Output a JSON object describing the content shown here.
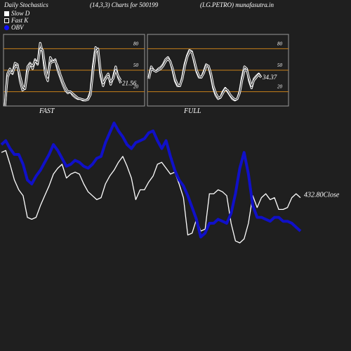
{
  "header": {
    "left": "Daily Stochastics",
    "params": "(14,3,3) Charts for 500199",
    "symbol": "(I.G.PETRO) munafasutra.in"
  },
  "legend": [
    {
      "label": "Slow  D",
      "swatch": "white"
    },
    {
      "label": "Fast K",
      "swatch": "outline"
    },
    {
      "label": "OBV",
      "swatch": "blue"
    }
  ],
  "chart_data": [
    {
      "type": "line",
      "name": "FAST",
      "ylim": [
        0,
        100
      ],
      "levels": [
        20,
        50,
        80
      ],
      "tick_labels": [
        "80",
        "50",
        "20"
      ],
      "last_value_label": "21.56",
      "series": [
        {
          "name": "Fast K",
          "values": [
            0,
            45,
            52,
            45,
            60,
            58,
            35,
            22,
            25,
            55,
            60,
            52,
            65,
            58,
            88,
            75,
            45,
            35,
            68,
            62,
            65,
            50,
            40,
            30,
            22,
            18,
            20,
            15,
            12,
            10,
            10,
            8,
            8,
            10,
            20,
            55,
            82,
            78,
            42,
            28,
            40,
            45,
            30,
            40,
            55,
            40,
            32
          ]
        },
        {
          "name": "Slow D",
          "values": [
            0,
            40,
            48,
            46,
            55,
            56,
            42,
            28,
            24,
            48,
            58,
            56,
            63,
            60,
            80,
            78,
            54,
            40,
            60,
            62,
            63,
            55,
            44,
            34,
            26,
            20,
            20,
            17,
            14,
            11,
            10,
            9,
            8,
            9,
            16,
            48,
            75,
            80,
            48,
            32,
            38,
            42,
            34,
            38,
            50,
            42,
            36
          ]
        }
      ]
    },
    {
      "type": "line",
      "name": "FULL",
      "ylim": [
        0,
        100
      ],
      "levels": [
        20,
        50,
        80
      ],
      "tick_labels": [
        "80",
        "50",
        "20"
      ],
      "last_value_label": "34.37",
      "series": [
        {
          "name": "Fast K",
          "values": [
            40,
            55,
            50,
            48,
            52,
            54,
            58,
            65,
            68,
            62,
            50,
            35,
            28,
            28,
            40,
            58,
            70,
            78,
            76,
            62,
            48,
            40,
            40,
            48,
            58,
            55,
            42,
            25,
            15,
            10,
            12,
            20,
            25,
            20,
            15,
            10,
            8,
            10,
            20,
            40,
            55,
            52,
            35,
            25,
            38,
            42,
            45,
            40
          ]
        },
        {
          "name": "Slow D",
          "values": [
            38,
            52,
            50,
            48,
            50,
            52,
            56,
            62,
            66,
            62,
            52,
            38,
            30,
            28,
            38,
            55,
            68,
            76,
            75,
            64,
            50,
            42,
            40,
            46,
            56,
            56,
            45,
            28,
            18,
            12,
            12,
            18,
            24,
            22,
            16,
            12,
            9,
            10,
            18,
            36,
            50,
            50,
            38,
            28,
            36,
            40,
            44,
            40
          ]
        }
      ]
    },
    {
      "type": "line",
      "name": "Price / OBV",
      "ylim": [
        0,
        100
      ],
      "close_label": "432.80Close",
      "series": [
        {
          "name": "Close",
          "values": [
            76,
            77,
            70,
            62,
            57,
            54,
            43,
            42,
            43,
            49,
            54,
            59,
            65,
            68,
            70,
            63,
            65,
            66,
            65,
            60,
            56,
            54,
            52,
            53,
            60,
            64,
            67,
            71,
            74,
            69,
            63,
            52,
            57,
            57,
            61,
            64,
            70,
            71,
            68,
            65,
            66,
            60,
            53,
            34,
            35,
            42,
            36,
            37,
            55,
            55,
            57,
            56,
            54,
            40,
            31,
            30,
            32,
            40,
            54,
            48,
            53,
            55,
            52,
            53,
            47,
            47,
            48,
            53,
            55,
            53
          ]
        },
        {
          "name": "OBV",
          "values": [
            80,
            82,
            78,
            75,
            75,
            70,
            62,
            60,
            64,
            67,
            71,
            75,
            80,
            77,
            73,
            69,
            70,
            72,
            71,
            69,
            68,
            70,
            73,
            74,
            81,
            86,
            91,
            87,
            84,
            80,
            78,
            81,
            82,
            83,
            86,
            87,
            82,
            78,
            82,
            74,
            67,
            62,
            59,
            54,
            48,
            42,
            33,
            35,
            40,
            40,
            42,
            41,
            40,
            45,
            55,
            68,
            76,
            65,
            49,
            43,
            43,
            42,
            41,
            43,
            43,
            41,
            41,
            40,
            38,
            36
          ]
        }
      ]
    }
  ]
}
